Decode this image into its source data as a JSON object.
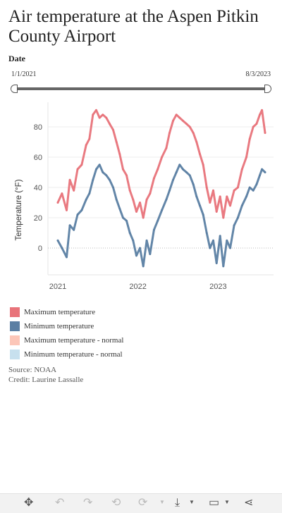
{
  "title": "Air temperature at the Aspen Pitkin County Airport",
  "filter": {
    "label": "Date",
    "range_start": "1/1/2021",
    "range_end": "8/3/2023",
    "handle_start_fraction": 0.0,
    "handle_end_fraction": 1.0
  },
  "legend": [
    {
      "label": "Maximum temperature",
      "color": "#e8737a"
    },
    {
      "label": "Minimum temperature",
      "color": "#5b7fa3"
    },
    {
      "label": "Maximum temperature - normal",
      "color": "#fcc6b8"
    },
    {
      "label": "Minimum temperature - normal",
      "color": "#c7e0ee"
    }
  ],
  "footer": {
    "source": "Source: NOAA",
    "credit": "Credit: Laurine Lassalle"
  },
  "toolbar": [
    {
      "name": "move-icon",
      "glyph": "✥",
      "enabled": true
    },
    {
      "name": "undo-icon",
      "glyph": "↶",
      "enabled": false
    },
    {
      "name": "redo-icon",
      "glyph": "↷",
      "enabled": false
    },
    {
      "name": "revert-icon",
      "glyph": "⟲",
      "enabled": false
    },
    {
      "name": "refresh-icon",
      "glyph": "⟳",
      "enabled": false
    },
    {
      "name": "download-icon",
      "glyph": "⤓",
      "enabled": true
    },
    {
      "name": "device-layout-icon",
      "glyph": "▭",
      "enabled": true
    },
    {
      "name": "share-icon",
      "glyph": "⋖",
      "enabled": true
    }
  ],
  "chart_data": {
    "type": "line",
    "xlabel": "",
    "ylabel": "Temperature (°F)",
    "x_range": [
      "2021-01-01",
      "2023-08-03"
    ],
    "x_ticks": [
      "2021",
      "2022",
      "2023"
    ],
    "y_range": [
      -18,
      97
    ],
    "y_ticks": [
      0,
      20,
      40,
      60,
      80
    ],
    "zero_line": "dotted",
    "grid": "horizontal",
    "series": [
      {
        "name": "Maximum temperature",
        "color": "#e8737a",
        "points": [
          [
            "2021-01-01",
            30
          ],
          [
            "2021-01-20",
            36
          ],
          [
            "2021-02-10",
            25
          ],
          [
            "2021-02-25",
            45
          ],
          [
            "2021-03-15",
            38
          ],
          [
            "2021-04-01",
            52
          ],
          [
            "2021-04-20",
            55
          ],
          [
            "2021-05-10",
            68
          ],
          [
            "2021-05-25",
            72
          ],
          [
            "2021-06-10",
            88
          ],
          [
            "2021-06-25",
            91
          ],
          [
            "2021-07-10",
            86
          ],
          [
            "2021-07-25",
            88
          ],
          [
            "2021-08-10",
            86
          ],
          [
            "2021-08-25",
            82
          ],
          [
            "2021-09-10",
            78
          ],
          [
            "2021-09-25",
            70
          ],
          [
            "2021-10-10",
            62
          ],
          [
            "2021-10-25",
            52
          ],
          [
            "2021-11-10",
            48
          ],
          [
            "2021-11-25",
            38
          ],
          [
            "2021-12-10",
            32
          ],
          [
            "2021-12-25",
            24
          ],
          [
            "2022-01-10",
            30
          ],
          [
            "2022-01-25",
            20
          ],
          [
            "2022-02-10",
            32
          ],
          [
            "2022-02-25",
            36
          ],
          [
            "2022-03-15",
            46
          ],
          [
            "2022-04-01",
            52
          ],
          [
            "2022-04-20",
            60
          ],
          [
            "2022-05-10",
            66
          ],
          [
            "2022-05-25",
            76
          ],
          [
            "2022-06-10",
            84
          ],
          [
            "2022-06-25",
            88
          ],
          [
            "2022-07-10",
            86
          ],
          [
            "2022-07-25",
            84
          ],
          [
            "2022-08-10",
            82
          ],
          [
            "2022-08-25",
            80
          ],
          [
            "2022-09-10",
            76
          ],
          [
            "2022-09-25",
            70
          ],
          [
            "2022-10-10",
            62
          ],
          [
            "2022-10-25",
            55
          ],
          [
            "2022-11-10",
            40
          ],
          [
            "2022-11-25",
            30
          ],
          [
            "2022-12-10",
            38
          ],
          [
            "2022-12-25",
            24
          ],
          [
            "2023-01-10",
            34
          ],
          [
            "2023-01-25",
            20
          ],
          [
            "2023-02-10",
            34
          ],
          [
            "2023-02-25",
            28
          ],
          [
            "2023-03-15",
            38
          ],
          [
            "2023-04-01",
            40
          ],
          [
            "2023-04-20",
            52
          ],
          [
            "2023-05-10",
            60
          ],
          [
            "2023-05-25",
            72
          ],
          [
            "2023-06-10",
            80
          ],
          [
            "2023-06-25",
            82
          ],
          [
            "2023-07-10",
            88
          ],
          [
            "2023-07-20",
            91
          ],
          [
            "2023-08-03",
            76
          ]
        ]
      },
      {
        "name": "Minimum temperature",
        "color": "#5b7fa3",
        "points": [
          [
            "2021-01-01",
            5
          ],
          [
            "2021-01-20",
            0
          ],
          [
            "2021-02-10",
            -6
          ],
          [
            "2021-02-25",
            15
          ],
          [
            "2021-03-15",
            12
          ],
          [
            "2021-04-01",
            22
          ],
          [
            "2021-04-20",
            25
          ],
          [
            "2021-05-10",
            32
          ],
          [
            "2021-05-25",
            36
          ],
          [
            "2021-06-10",
            45
          ],
          [
            "2021-06-25",
            52
          ],
          [
            "2021-07-10",
            55
          ],
          [
            "2021-07-25",
            50
          ],
          [
            "2021-08-10",
            48
          ],
          [
            "2021-08-25",
            45
          ],
          [
            "2021-09-10",
            40
          ],
          [
            "2021-09-25",
            32
          ],
          [
            "2021-10-10",
            26
          ],
          [
            "2021-10-25",
            20
          ],
          [
            "2021-11-10",
            18
          ],
          [
            "2021-11-25",
            10
          ],
          [
            "2021-12-10",
            5
          ],
          [
            "2021-12-25",
            -5
          ],
          [
            "2022-01-10",
            0
          ],
          [
            "2022-01-25",
            -12
          ],
          [
            "2022-02-10",
            5
          ],
          [
            "2022-02-25",
            -4
          ],
          [
            "2022-03-15",
            12
          ],
          [
            "2022-04-01",
            18
          ],
          [
            "2022-04-20",
            25
          ],
          [
            "2022-05-10",
            32
          ],
          [
            "2022-05-25",
            38
          ],
          [
            "2022-06-10",
            45
          ],
          [
            "2022-06-25",
            50
          ],
          [
            "2022-07-10",
            55
          ],
          [
            "2022-07-25",
            52
          ],
          [
            "2022-08-10",
            50
          ],
          [
            "2022-08-25",
            48
          ],
          [
            "2022-09-10",
            42
          ],
          [
            "2022-09-25",
            34
          ],
          [
            "2022-10-10",
            28
          ],
          [
            "2022-10-25",
            22
          ],
          [
            "2022-11-10",
            10
          ],
          [
            "2022-11-25",
            0
          ],
          [
            "2022-12-10",
            5
          ],
          [
            "2022-12-25",
            -10
          ],
          [
            "2023-01-10",
            8
          ],
          [
            "2023-01-25",
            -12
          ],
          [
            "2023-02-10",
            5
          ],
          [
            "2023-02-25",
            0
          ],
          [
            "2023-03-15",
            15
          ],
          [
            "2023-04-01",
            20
          ],
          [
            "2023-04-20",
            28
          ],
          [
            "2023-05-10",
            34
          ],
          [
            "2023-05-25",
            40
          ],
          [
            "2023-06-10",
            38
          ],
          [
            "2023-06-25",
            42
          ],
          [
            "2023-07-10",
            48
          ],
          [
            "2023-07-20",
            52
          ],
          [
            "2023-08-03",
            50
          ]
        ]
      }
    ]
  }
}
